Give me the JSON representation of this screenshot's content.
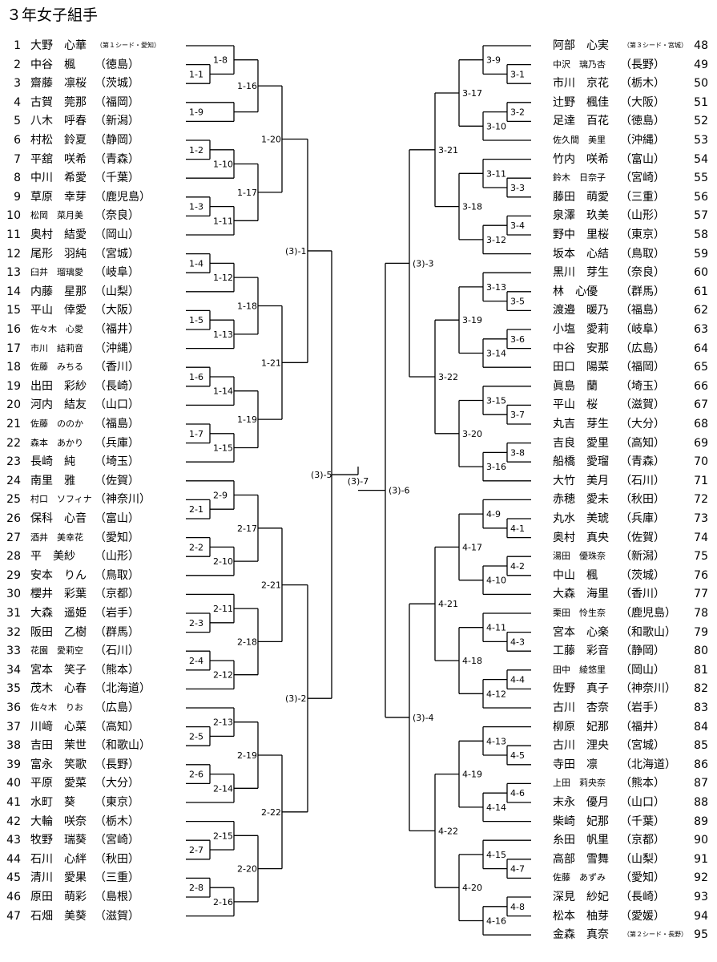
{
  "title": "３年女子組手",
  "left_players": [
    {
      "num": "1",
      "name": "大野　心華",
      "pref": "（第１シード・愛知）",
      "seed": true
    },
    {
      "num": "2",
      "name": "中谷　楓",
      "pref": "（徳島）"
    },
    {
      "num": "3",
      "name": "齋藤　凛桜",
      "pref": "（茨城）"
    },
    {
      "num": "4",
      "name": "古賀　莞那",
      "pref": "（福岡）"
    },
    {
      "num": "5",
      "name": "八木　呼春",
      "pref": "（新潟）"
    },
    {
      "num": "6",
      "name": "村松　鈴夏",
      "pref": "（静岡）"
    },
    {
      "num": "7",
      "name": "平舘　咲希",
      "pref": "（青森）"
    },
    {
      "num": "8",
      "name": "中川　希愛",
      "pref": "（千葉）"
    },
    {
      "num": "9",
      "name": "草原　幸芽",
      "pref": "（鹿児島）"
    },
    {
      "num": "10",
      "name": "松岡　菜月美",
      "pref": "（奈良）",
      "small": true
    },
    {
      "num": "11",
      "name": "奥村　結愛",
      "pref": "（岡山）"
    },
    {
      "num": "12",
      "name": "尾形　羽純",
      "pref": "（宮城）"
    },
    {
      "num": "13",
      "name": "臼井　瑠璃愛",
      "pref": "（岐阜）",
      "small": true
    },
    {
      "num": "14",
      "name": "内藤　星那",
      "pref": "（山梨）"
    },
    {
      "num": "15",
      "name": "平山　倖愛",
      "pref": "（大阪）"
    },
    {
      "num": "16",
      "name": "佐々木　心愛",
      "pref": "（福井）",
      "small": true
    },
    {
      "num": "17",
      "name": "市川　結莉音",
      "pref": "（沖縄）",
      "small": true
    },
    {
      "num": "18",
      "name": "佐藤　みちる",
      "pref": "（香川）",
      "small": true
    },
    {
      "num": "19",
      "name": "出田　彩紗",
      "pref": "（長崎）"
    },
    {
      "num": "20",
      "name": "河内　結友",
      "pref": "（山口）"
    },
    {
      "num": "21",
      "name": "佐藤　ののか",
      "pref": "（福島）",
      "small": true
    },
    {
      "num": "22",
      "name": "森本　あかり",
      "pref": "（兵庫）",
      "small": true
    },
    {
      "num": "23",
      "name": "長崎　純",
      "pref": "（埼玉）"
    },
    {
      "num": "24",
      "name": "南里　雅",
      "pref": "（佐賀）"
    },
    {
      "num": "25",
      "name": "村口　ソフィナ",
      "pref": "（神奈川）",
      "small": true
    },
    {
      "num": "26",
      "name": "保科　心音",
      "pref": "（富山）"
    },
    {
      "num": "27",
      "name": "酒井　美幸花",
      "pref": "（愛知）",
      "small": true
    },
    {
      "num": "28",
      "name": "平　美紗",
      "pref": "（山形）"
    },
    {
      "num": "29",
      "name": "安本　りん",
      "pref": "（鳥取）"
    },
    {
      "num": "30",
      "name": "櫻井　彩葉",
      "pref": "（京都）"
    },
    {
      "num": "31",
      "name": "大森　遥姫",
      "pref": "（岩手）"
    },
    {
      "num": "32",
      "name": "阪田　乙樹",
      "pref": "（群馬）"
    },
    {
      "num": "33",
      "name": "花園　愛莉空",
      "pref": "（石川）",
      "small": true
    },
    {
      "num": "34",
      "name": "宮本　笑子",
      "pref": "（熊本）"
    },
    {
      "num": "35",
      "name": "茂木　心春",
      "pref": "（北海道）"
    },
    {
      "num": "36",
      "name": "佐々木　りお",
      "pref": "（広島）",
      "small": true
    },
    {
      "num": "37",
      "name": "川﨑　心菜",
      "pref": "（高知）"
    },
    {
      "num": "38",
      "name": "吉田　茉世",
      "pref": "（和歌山）"
    },
    {
      "num": "39",
      "name": "富永　笑歌",
      "pref": "（長野）"
    },
    {
      "num": "40",
      "name": "平原　愛菜",
      "pref": "（大分）"
    },
    {
      "num": "41",
      "name": "水町　葵",
      "pref": "（東京）"
    },
    {
      "num": "42",
      "name": "大輪　咲奈",
      "pref": "（栃木）"
    },
    {
      "num": "43",
      "name": "牧野　瑞葵",
      "pref": "（宮崎）"
    },
    {
      "num": "44",
      "name": "石川　心絆",
      "pref": "（秋田）"
    },
    {
      "num": "45",
      "name": "清川　愛果",
      "pref": "（三重）"
    },
    {
      "num": "46",
      "name": "原田　萌彩",
      "pref": "（島根）"
    },
    {
      "num": "47",
      "name": "石畑　美葵",
      "pref": "（滋賀）"
    }
  ],
  "right_players": [
    {
      "num": "48",
      "name": "阿部　心実",
      "pref": "（第３シード・宮城）",
      "seed": true
    },
    {
      "num": "49",
      "name": "中沢　璃乃杏",
      "pref": "（長野）",
      "small": true
    },
    {
      "num": "50",
      "name": "市川　京花",
      "pref": "（栃木）"
    },
    {
      "num": "51",
      "name": "辻野　楓佳",
      "pref": "（大阪）"
    },
    {
      "num": "52",
      "name": "足達　百花",
      "pref": "（徳島）"
    },
    {
      "num": "53",
      "name": "佐久間　美里",
      "pref": "（沖縄）",
      "small": true
    },
    {
      "num": "54",
      "name": "竹内　咲希",
      "pref": "（富山）"
    },
    {
      "num": "55",
      "name": "鈴木　日奈子",
      "pref": "（宮崎）",
      "small": true
    },
    {
      "num": "56",
      "name": "藤田　萌愛",
      "pref": "（三重）"
    },
    {
      "num": "57",
      "name": "泉澤　玖美",
      "pref": "（山形）"
    },
    {
      "num": "58",
      "name": "野中　里桜",
      "pref": "（東京）"
    },
    {
      "num": "59",
      "name": "坂本　心結",
      "pref": "（鳥取）"
    },
    {
      "num": "60",
      "name": "黒川　芽生",
      "pref": "（奈良）"
    },
    {
      "num": "61",
      "name": "林　心優",
      "pref": "（群馬）"
    },
    {
      "num": "62",
      "name": "渡邉　暖乃",
      "pref": "（福島）"
    },
    {
      "num": "63",
      "name": "小塩　愛莉",
      "pref": "（岐阜）"
    },
    {
      "num": "64",
      "name": "中谷　安那",
      "pref": "（広島）"
    },
    {
      "num": "65",
      "name": "田口　陽菜",
      "pref": "（福岡）"
    },
    {
      "num": "66",
      "name": "眞島　蘭",
      "pref": "（埼玉）"
    },
    {
      "num": "67",
      "name": "平山　桜",
      "pref": "（滋賀）"
    },
    {
      "num": "68",
      "name": "丸吉　芽生",
      "pref": "（大分）"
    },
    {
      "num": "69",
      "name": "吉良　愛里",
      "pref": "（高知）"
    },
    {
      "num": "70",
      "name": "船橋　愛瑠",
      "pref": "（青森）"
    },
    {
      "num": "71",
      "name": "大竹　美月",
      "pref": "（石川）"
    },
    {
      "num": "72",
      "name": "赤穂　愛未",
      "pref": "（秋田）"
    },
    {
      "num": "73",
      "name": "丸水　美琥",
      "pref": "（兵庫）"
    },
    {
      "num": "74",
      "name": "奥村　真央",
      "pref": "（佐賀）"
    },
    {
      "num": "75",
      "name": "湯田　優珠奈",
      "pref": "（新潟）",
      "small": true
    },
    {
      "num": "76",
      "name": "中山　楓",
      "pref": "（茨城）"
    },
    {
      "num": "77",
      "name": "大森　海里",
      "pref": "（香川）"
    },
    {
      "num": "78",
      "name": "栗田　怜生奈",
      "pref": "（鹿児島）",
      "small": true
    },
    {
      "num": "79",
      "name": "宮本　心楽",
      "pref": "（和歌山）"
    },
    {
      "num": "80",
      "name": "工藤　彩音",
      "pref": "（静岡）"
    },
    {
      "num": "81",
      "name": "田中　綾悠里",
      "pref": "（岡山）",
      "small": true
    },
    {
      "num": "82",
      "name": "佐野　真子",
      "pref": "（神奈川）"
    },
    {
      "num": "83",
      "name": "古川　杏奈",
      "pref": "（岩手）"
    },
    {
      "num": "84",
      "name": "柳原　妃那",
      "pref": "（福井）"
    },
    {
      "num": "85",
      "name": "古川　浬央",
      "pref": "（宮城）"
    },
    {
      "num": "86",
      "name": "寺田　凛",
      "pref": "（北海道）"
    },
    {
      "num": "87",
      "name": "上田　莉央奈",
      "pref": "（熊本）",
      "small": true
    },
    {
      "num": "88",
      "name": "末永　優月",
      "pref": "（山口）"
    },
    {
      "num": "89",
      "name": "柴崎　妃那",
      "pref": "（千葉）"
    },
    {
      "num": "90",
      "name": "糸田　帆里",
      "pref": "（京都）"
    },
    {
      "num": "91",
      "name": "高部　雪舞",
      "pref": "（山梨）"
    },
    {
      "num": "92",
      "name": "佐藤　あずみ",
      "pref": "（愛知）",
      "small": true
    },
    {
      "num": "93",
      "name": "深見　紗妃",
      "pref": "（長崎）"
    },
    {
      "num": "94",
      "name": "松本　柚芽",
      "pref": "（愛媛）"
    },
    {
      "num": "95",
      "name": "金森　真奈",
      "pref": "（第２シード・長野）",
      "seed": true
    }
  ],
  "match_labels_left": {
    "group1": [
      "1-1",
      "1-2",
      "1-3",
      "1-4",
      "1-5",
      "1-6",
      "1-7",
      "1-8",
      "1-9",
      "1-10",
      "1-11",
      "1-12",
      "1-13",
      "1-14",
      "1-15",
      "1-16",
      "1-17",
      "1-18",
      "1-19",
      "1-20",
      "1-21"
    ],
    "group2": [
      "2-1",
      "2-2",
      "2-3",
      "2-4",
      "2-5",
      "2-6",
      "2-7",
      "2-8",
      "2-9",
      "2-10",
      "2-11",
      "2-12",
      "2-13",
      "2-14",
      "2-15",
      "2-16",
      "2-17",
      "2-18",
      "2-19",
      "2-20",
      "2-21",
      "2-22"
    ]
  },
  "match_labels_right": {
    "group3": [
      "3-1",
      "3-2",
      "3-3",
      "3-4",
      "3-5",
      "3-6",
      "3-7",
      "3-8",
      "3-9",
      "3-10",
      "3-11",
      "3-12",
      "3-13",
      "3-14",
      "3-15",
      "3-16",
      "3-17",
      "3-18",
      "3-19",
      "3-20",
      "3-21",
      "3-22"
    ],
    "group4": [
      "4-1",
      "4-2",
      "4-3",
      "4-4",
      "4-5",
      "4-6",
      "4-7",
      "4-8",
      "4-9",
      "4-10",
      "4-11",
      "4-12",
      "4-13",
      "4-14",
      "4-15",
      "4-16",
      "4-17",
      "4-18",
      "4-19",
      "4-20",
      "4-21",
      "4-22"
    ]
  },
  "final_labels": {
    "r3_1": "(3)-1",
    "r3_2": "(3)-2",
    "r3_3": "(3)-3",
    "r3_4": "(3)-4",
    "semi_left": "(3)-5",
    "semi_right": "(3)-6",
    "final": "(3)-7"
  }
}
